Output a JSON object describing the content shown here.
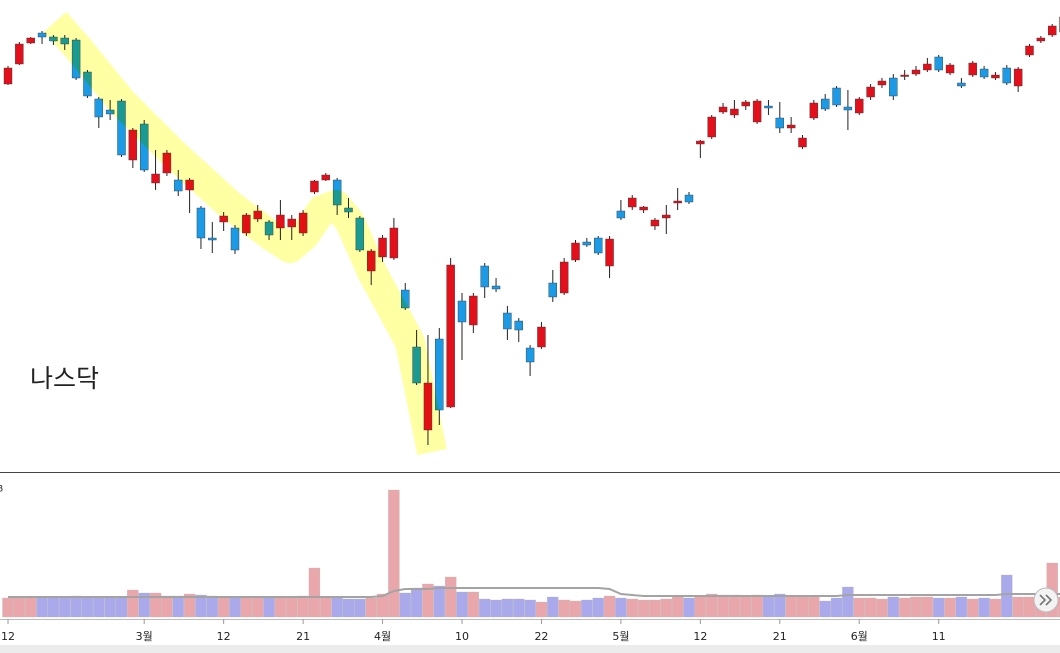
{
  "chart_data": {
    "type": "candlestick",
    "annotation": "나스닥",
    "categories": [
      "12",
      null,
      null,
      null,
      null,
      null,
      null,
      null,
      null,
      null,
      null,
      null,
      "3월",
      null,
      null,
      null,
      null,
      null,
      null,
      "12",
      null,
      null,
      null,
      null,
      null,
      null,
      "21",
      null,
      null,
      null,
      null,
      null,
      null,
      "4월",
      null,
      null,
      null,
      null,
      null,
      null,
      "10",
      null,
      null,
      null,
      null,
      null,
      null,
      "22",
      null,
      null,
      null,
      null,
      null,
      null,
      "5월",
      null,
      null,
      null,
      null,
      null,
      null,
      "12",
      null,
      null,
      null,
      null,
      null,
      null,
      "21",
      null,
      null,
      null,
      null,
      null,
      null,
      "6월",
      null,
      null,
      null,
      null,
      null,
      null,
      "11",
      null,
      null,
      null,
      null,
      null,
      null,
      null,
      null,
      null,
      null,
      null
    ],
    "candles": [
      [
        416,
        434,
        415,
        432
      ],
      [
        436,
        458,
        435,
        456
      ],
      [
        457,
        463,
        456,
        462
      ],
      [
        467,
        469,
        456,
        463
      ],
      [
        463,
        465,
        455,
        459
      ],
      [
        462,
        465,
        450,
        456
      ],
      [
        460,
        462,
        420,
        422
      ],
      [
        428,
        430,
        402,
        404
      ],
      [
        401,
        403,
        372,
        383
      ],
      [
        390,
        400,
        380,
        386
      ],
      [
        399,
        401,
        343,
        345
      ],
      [
        340,
        372,
        332,
        370
      ],
      [
        376,
        380,
        328,
        330
      ],
      [
        317,
        350,
        310,
        326
      ],
      [
        327,
        350,
        324,
        347
      ],
      [
        320,
        330,
        304,
        309
      ],
      [
        310,
        322,
        287,
        320
      ],
      [
        292,
        294,
        251,
        262
      ],
      [
        262,
        278,
        247,
        260
      ],
      [
        278,
        288,
        269,
        284
      ],
      [
        272,
        275,
        246,
        250
      ],
      [
        267,
        287,
        264,
        285
      ],
      [
        281,
        295,
        278,
        289
      ],
      [
        278,
        280,
        260,
        265
      ],
      [
        272,
        300,
        260,
        285
      ],
      [
        273,
        285,
        260,
        281
      ],
      [
        267,
        290,
        264,
        287
      ],
      [
        308,
        320,
        306,
        319
      ],
      [
        320,
        327,
        319,
        325
      ],
      [
        320,
        322,
        285,
        295
      ],
      [
        292,
        302,
        282,
        288
      ],
      [
        282,
        284,
        248,
        250
      ],
      [
        229,
        251,
        215,
        249
      ],
      [
        243,
        265,
        238,
        262
      ],
      [
        242,
        282,
        240,
        272
      ],
      [
        210,
        217,
        190,
        192
      ],
      [
        153,
        170,
        115,
        117
      ],
      [
        70,
        165,
        55,
        117
      ],
      [
        161,
        172,
        75,
        90
      ],
      [
        93,
        242,
        92,
        235
      ],
      [
        199,
        207,
        140,
        178
      ],
      [
        175,
        207,
        167,
        204
      ],
      [
        234,
        237,
        202,
        213
      ],
      [
        214,
        222,
        208,
        211
      ],
      [
        187,
        194,
        160,
        171
      ],
      [
        179,
        182,
        158,
        170
      ],
      [
        152,
        155,
        124,
        138
      ],
      [
        153,
        178,
        151,
        173
      ],
      [
        217,
        230,
        198,
        203
      ],
      [
        207,
        242,
        205,
        238
      ],
      [
        240,
        260,
        238,
        257
      ],
      [
        258,
        262,
        253,
        255
      ],
      [
        262,
        264,
        245,
        247
      ],
      [
        234,
        264,
        222,
        261
      ],
      [
        289,
        300,
        280,
        282
      ],
      [
        293,
        305,
        290,
        302
      ],
      [
        290,
        294,
        287,
        293
      ],
      [
        274,
        282,
        270,
        280
      ],
      [
        282,
        295,
        266,
        285
      ],
      [
        297,
        312,
        290,
        299
      ],
      [
        305,
        308,
        296,
        298
      ],
      [
        356,
        360,
        342,
        359
      ],
      [
        363,
        385,
        361,
        383
      ],
      [
        388,
        397,
        386,
        393
      ],
      [
        385,
        400,
        382,
        391
      ],
      [
        394,
        400,
        390,
        398
      ],
      [
        378,
        401,
        376,
        399
      ],
      [
        394,
        400,
        385,
        392
      ],
      [
        382,
        398,
        367,
        372
      ],
      [
        372,
        383,
        367,
        375
      ],
      [
        353,
        365,
        351,
        362
      ],
      [
        382,
        400,
        380,
        397
      ],
      [
        401,
        406,
        389,
        391
      ],
      [
        412,
        414,
        393,
        395
      ],
      [
        393,
        410,
        370,
        390
      ],
      [
        387,
        403,
        385,
        401
      ],
      [
        403,
        416,
        400,
        413
      ],
      [
        415,
        422,
        412,
        419
      ],
      [
        422,
        426,
        400,
        404
      ],
      [
        424,
        430,
        420,
        425
      ],
      [
        426,
        434,
        424,
        430
      ],
      [
        430,
        442,
        428,
        436
      ],
      [
        443,
        445,
        428,
        430
      ],
      [
        427,
        437,
        425,
        435
      ],
      [
        417,
        422,
        412,
        414
      ],
      [
        425,
        439,
        423,
        437
      ],
      [
        431,
        434,
        421,
        423
      ],
      [
        422,
        428,
        420,
        425
      ],
      [
        432,
        435,
        415,
        417
      ],
      [
        414,
        433,
        408,
        431
      ],
      [
        445,
        456,
        443,
        454
      ],
      [
        459,
        464,
        457,
        462
      ],
      [
        465,
        476,
        463,
        474
      ],
      [
        468,
        485,
        465,
        483
      ]
    ],
    "ylim": [
      30,
      500
    ],
    "up_color": "#e3101b",
    "down_color": "#1b9ae6",
    "volume": {
      "label": "B",
      "values": [
        19,
        19,
        20,
        19,
        20,
        19,
        21,
        20,
        20,
        19,
        20,
        27,
        24,
        24,
        21,
        21,
        23,
        22,
        21,
        19,
        20,
        19,
        19,
        19,
        19,
        20,
        21,
        49,
        20,
        19,
        18,
        18,
        19,
        23,
        127,
        24,
        29,
        33,
        31,
        40,
        25,
        25,
        18,
        17,
        18,
        18,
        17,
        15,
        20,
        17,
        16,
        17,
        19,
        21,
        19,
        18,
        17,
        17,
        18,
        20,
        19,
        21,
        23,
        22,
        22,
        21,
        22,
        20,
        23,
        21,
        20,
        20,
        16,
        19,
        30,
        19,
        19,
        18,
        20,
        19,
        20,
        20,
        19,
        19,
        20,
        18,
        19,
        18,
        42,
        20,
        20,
        20,
        54,
        20
      ],
      "average": [
        20,
        20,
        20,
        20,
        20,
        20,
        20,
        20,
        20,
        20,
        20,
        20,
        20,
        20,
        20,
        20,
        20,
        20,
        20,
        20,
        20,
        20,
        20,
        20,
        20,
        20,
        20,
        20,
        20,
        20,
        20,
        20,
        20,
        21,
        26,
        28,
        28,
        28,
        29,
        29,
        29,
        29,
        29,
        29,
        29,
        29,
        29,
        29,
        29,
        29,
        29,
        29,
        29,
        28,
        23,
        22,
        21,
        21,
        21,
        21,
        21,
        21,
        21,
        21,
        21,
        21,
        21,
        21,
        21,
        21,
        21,
        21,
        21,
        21,
        22,
        22,
        22,
        22,
        22,
        22,
        22,
        22,
        22,
        22,
        22,
        22,
        22,
        22,
        23,
        23,
        23,
        23,
        23,
        23
      ],
      "ylim": [
        0,
        130
      ],
      "up_color": "#e9a7ab",
      "down_color": "#a9a9eb",
      "average_color": "#a3a3a3"
    }
  }
}
